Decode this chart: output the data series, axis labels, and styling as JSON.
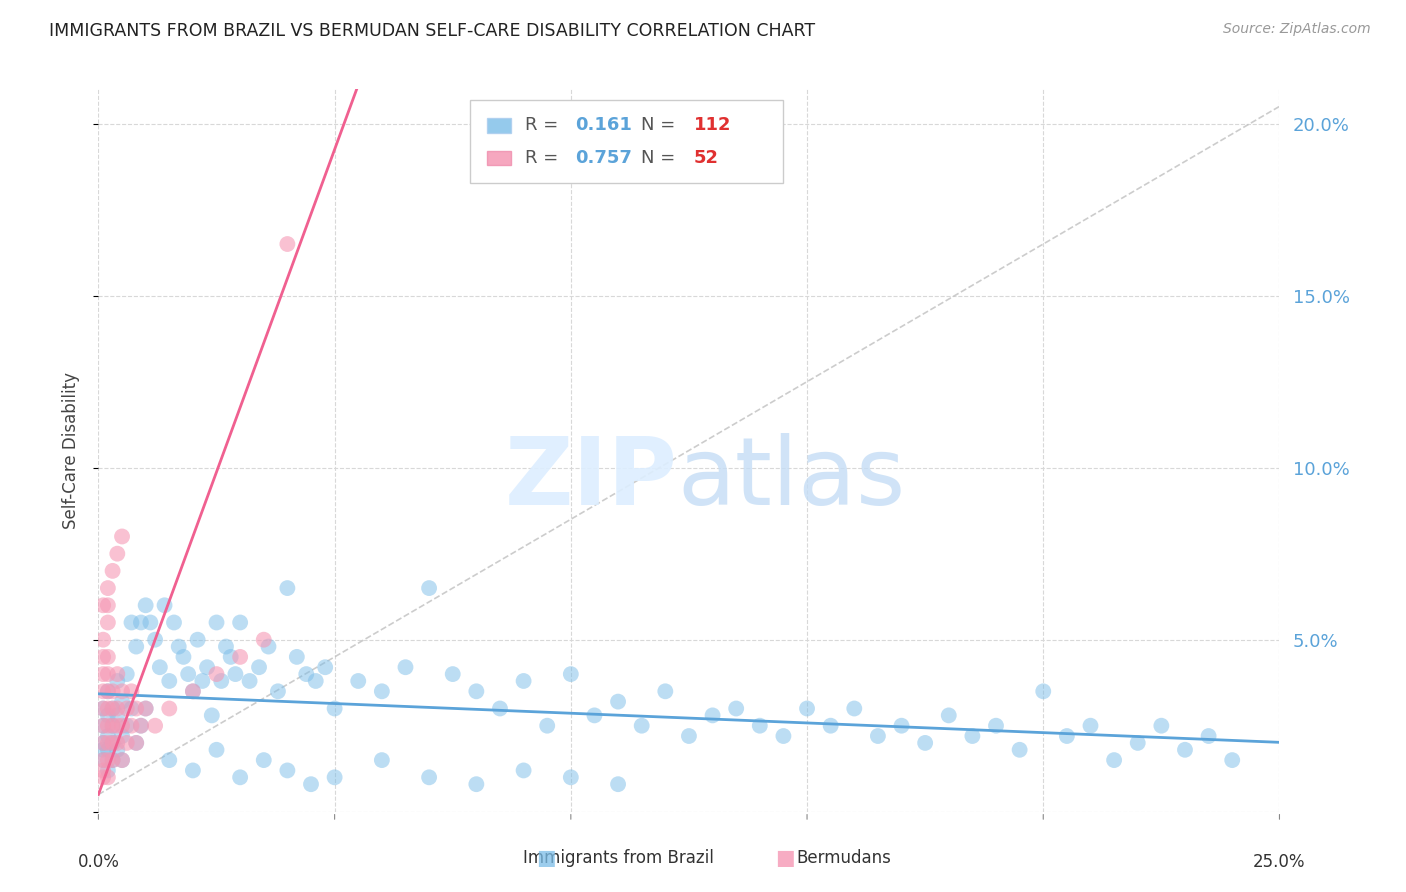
{
  "title": "IMMIGRANTS FROM BRAZIL VS BERMUDAN SELF-CARE DISABILITY CORRELATION CHART",
  "source": "Source: ZipAtlas.com",
  "ylabel": "Self-Care Disability",
  "xlim": [
    0.0,
    0.25
  ],
  "ylim": [
    0.0,
    0.21
  ],
  "R1": 0.161,
  "N1": 112,
  "R2": 0.757,
  "N2": 52,
  "blue_color": "#7bbde8",
  "pink_color": "#f598b4",
  "trend_blue": "#5ba3d9",
  "trend_pink": "#f06090",
  "trend_gray": "#c0c0c0",
  "title_color": "#222222",
  "axis_label_color": "#444444",
  "tick_color_right": "#5ba3d9",
  "legend1_label": "Immigrants from Brazil",
  "legend2_label": "Bermudans",
  "brazil_x": [
    0.001,
    0.001,
    0.001,
    0.001,
    0.001,
    0.002,
    0.002,
    0.002,
    0.002,
    0.002,
    0.003,
    0.003,
    0.003,
    0.003,
    0.004,
    0.004,
    0.004,
    0.005,
    0.005,
    0.005,
    0.006,
    0.006,
    0.007,
    0.007,
    0.008,
    0.008,
    0.009,
    0.009,
    0.01,
    0.01,
    0.011,
    0.012,
    0.013,
    0.014,
    0.015,
    0.016,
    0.017,
    0.018,
    0.019,
    0.02,
    0.021,
    0.022,
    0.023,
    0.024,
    0.025,
    0.026,
    0.027,
    0.028,
    0.029,
    0.03,
    0.032,
    0.034,
    0.036,
    0.038,
    0.04,
    0.042,
    0.044,
    0.046,
    0.048,
    0.05,
    0.055,
    0.06,
    0.065,
    0.07,
    0.075,
    0.08,
    0.085,
    0.09,
    0.095,
    0.1,
    0.105,
    0.11,
    0.115,
    0.12,
    0.125,
    0.13,
    0.135,
    0.14,
    0.145,
    0.15,
    0.155,
    0.16,
    0.165,
    0.17,
    0.175,
    0.18,
    0.185,
    0.19,
    0.195,
    0.2,
    0.205,
    0.21,
    0.215,
    0.22,
    0.225,
    0.23,
    0.235,
    0.24,
    0.015,
    0.02,
    0.025,
    0.03,
    0.035,
    0.04,
    0.045,
    0.05,
    0.06,
    0.07,
    0.08,
    0.09,
    0.1,
    0.11
  ],
  "brazil_y": [
    0.02,
    0.025,
    0.03,
    0.018,
    0.015,
    0.022,
    0.028,
    0.018,
    0.012,
    0.035,
    0.025,
    0.03,
    0.02,
    0.015,
    0.038,
    0.028,
    0.018,
    0.032,
    0.022,
    0.015,
    0.04,
    0.025,
    0.055,
    0.03,
    0.048,
    0.02,
    0.055,
    0.025,
    0.06,
    0.03,
    0.055,
    0.05,
    0.042,
    0.06,
    0.038,
    0.055,
    0.048,
    0.045,
    0.04,
    0.035,
    0.05,
    0.038,
    0.042,
    0.028,
    0.055,
    0.038,
    0.048,
    0.045,
    0.04,
    0.055,
    0.038,
    0.042,
    0.048,
    0.035,
    0.065,
    0.045,
    0.04,
    0.038,
    0.042,
    0.03,
    0.038,
    0.035,
    0.042,
    0.065,
    0.04,
    0.035,
    0.03,
    0.038,
    0.025,
    0.04,
    0.028,
    0.032,
    0.025,
    0.035,
    0.022,
    0.028,
    0.03,
    0.025,
    0.022,
    0.03,
    0.025,
    0.03,
    0.022,
    0.025,
    0.02,
    0.028,
    0.022,
    0.025,
    0.018,
    0.035,
    0.022,
    0.025,
    0.015,
    0.02,
    0.025,
    0.018,
    0.022,
    0.015,
    0.015,
    0.012,
    0.018,
    0.01,
    0.015,
    0.012,
    0.008,
    0.01,
    0.015,
    0.01,
    0.008,
    0.012,
    0.01,
    0.008
  ],
  "bermuda_x": [
    0.001,
    0.001,
    0.001,
    0.001,
    0.001,
    0.001,
    0.001,
    0.001,
    0.001,
    0.001,
    0.002,
    0.002,
    0.002,
    0.002,
    0.002,
    0.002,
    0.002,
    0.002,
    0.002,
    0.002,
    0.003,
    0.003,
    0.003,
    0.003,
    0.003,
    0.004,
    0.004,
    0.004,
    0.004,
    0.005,
    0.005,
    0.005,
    0.006,
    0.006,
    0.007,
    0.007,
    0.008,
    0.008,
    0.009,
    0.01,
    0.012,
    0.015,
    0.02,
    0.025,
    0.03,
    0.035,
    0.04,
    0.001,
    0.002,
    0.003,
    0.004,
    0.005
  ],
  "bermuda_y": [
    0.02,
    0.025,
    0.03,
    0.035,
    0.04,
    0.015,
    0.01,
    0.045,
    0.05,
    0.012,
    0.03,
    0.035,
    0.025,
    0.02,
    0.04,
    0.015,
    0.055,
    0.01,
    0.045,
    0.06,
    0.025,
    0.03,
    0.02,
    0.015,
    0.035,
    0.025,
    0.03,
    0.02,
    0.04,
    0.035,
    0.025,
    0.015,
    0.03,
    0.02,
    0.035,
    0.025,
    0.03,
    0.02,
    0.025,
    0.03,
    0.025,
    0.03,
    0.035,
    0.04,
    0.045,
    0.05,
    0.165,
    0.06,
    0.065,
    0.07,
    0.075,
    0.08
  ]
}
